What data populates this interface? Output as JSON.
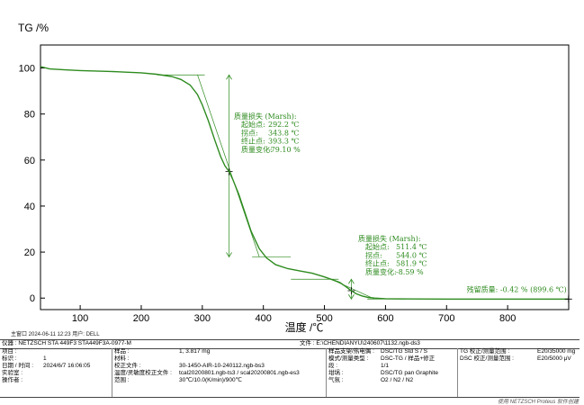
{
  "chart_data": {
    "type": "line",
    "ylabel": "TG /%",
    "xlabel": "温度 /℃",
    "xlim": [
      35,
      900
    ],
    "ylim": [
      -5,
      110
    ],
    "x_ticks": [
      100,
      200,
      300,
      400,
      500,
      600,
      700,
      800
    ],
    "y_ticks": [
      0,
      20,
      40,
      60,
      80,
      100
    ],
    "series": [
      {
        "color": "#2e8b1f",
        "x": [
          35,
          50,
          75,
          100,
          125,
          150,
          175,
          200,
          225,
          250,
          265,
          280,
          292,
          300,
          310,
          320,
          330,
          337,
          343.8,
          350,
          360,
          370,
          380,
          393.3,
          405,
          420,
          440,
          460,
          480,
          500,
          511,
          525,
          535,
          544,
          552,
          562,
          572,
          582,
          600,
          620,
          650,
          700,
          750,
          800,
          850,
          899.6
        ],
        "y": [
          100.6,
          99.6,
          99.2,
          98.9,
          98.7,
          98.5,
          98.2,
          97.9,
          97.3,
          96.3,
          95.0,
          92.6,
          88.5,
          84.0,
          77.0,
          69.0,
          61.5,
          57.5,
          55.0,
          51.5,
          45.0,
          37.0,
          29.0,
          21.5,
          17.5,
          14.5,
          12.8,
          11.8,
          10.8,
          9.2,
          8.2,
          6.8,
          5.0,
          3.2,
          1.9,
          0.9,
          0.3,
          0.0,
          -0.25,
          -0.35,
          -0.4,
          -0.42,
          -0.42,
          -0.42,
          -0.42,
          -0.42
        ]
      }
    ],
    "annotations": [
      {
        "lines": [
          "质量损失 (Marsh):",
          "起始点:",
          "拐点:",
          "终止点:",
          "质量变化:"
        ],
        "values": [
          "",
          "292.2 ℃",
          "343.8 ℃",
          "393.3 ℃",
          "-79.10 %"
        ],
        "onset": 292.2,
        "inflection": 343.8,
        "end": 393.3,
        "level_high": 97.0,
        "level_low": 17.9,
        "inflection_y": 55.0
      },
      {
        "lines": [
          "质量损失 (Marsh):",
          "起始点:",
          "拐点:",
          "终止点:",
          "质量变化:"
        ],
        "values": [
          "",
          "511.4 ℃",
          "544.0 ℃",
          "581.9 ℃",
          "-8.59 %"
        ],
        "onset": 511.4,
        "inflection": 544.0,
        "end": 581.9,
        "level_high": 8.2,
        "level_low": -0.4,
        "inflection_y": 3.2
      }
    ],
    "residual": {
      "label": "残留质量: -0.42 % (899.6 ℃)",
      "x": 899.6,
      "y": -0.42
    }
  },
  "meta": {
    "datetime_user": "主窗口   2024-06-11 12:23   用户: DELL"
  },
  "footer": {
    "instrument": "仪器 : NETZSCH STA 449F3 STA449F3A-0977-M",
    "file": "文件 : E:\\CHENDIANYU\\240607\\1132.ngb-ds3",
    "col1": [
      {
        "k": "项目 :",
        "v": ""
      },
      {
        "k": "标识 :",
        "v": "1"
      },
      {
        "k": "日期 / 时间 :",
        "v": "2024/6/7 16:06:05"
      },
      {
        "k": "实验室 :",
        "v": ""
      },
      {
        "k": "操作者 :",
        "v": ""
      }
    ],
    "col2": [
      {
        "k": "样品 :",
        "v": "1, 3.817 mg"
      },
      {
        "k": "材料 :",
        "v": ""
      },
      {
        "k": "校正文件 :",
        "v": "30-1450-AIR-10-240112.ngb-bs3"
      },
      {
        "k": "温度/灵敏度校正文件 :",
        "v": "tcal20200801.ngb-ts3 / scal20200801.ngb-es3"
      },
      {
        "k": "范围 :",
        "v": "30℃/10.0(K/min)/900℃"
      }
    ],
    "col3": [
      {
        "k": "样品支架/热电偶 :",
        "v": "DSC/TG Std S / S"
      },
      {
        "k": "模式/测量类型 :",
        "v": "DSC-TG / 样品+修正"
      },
      {
        "k": "段 :",
        "v": "1/1"
      },
      {
        "k": "坩埚 :",
        "v": "DSC/TG pan Graphite"
      },
      {
        "k": "气氛 :",
        "v": "O2 / N2 / N2"
      }
    ],
    "col4": [
      {
        "k": "TG 校正/测量范围 :",
        "v": "E20/35000 mg"
      },
      {
        "k": "DSC 校正/测量范围 :",
        "v": "E20/5000 μV"
      }
    ],
    "proteus": "使用 NETZSCH Proteus 软件创建"
  }
}
